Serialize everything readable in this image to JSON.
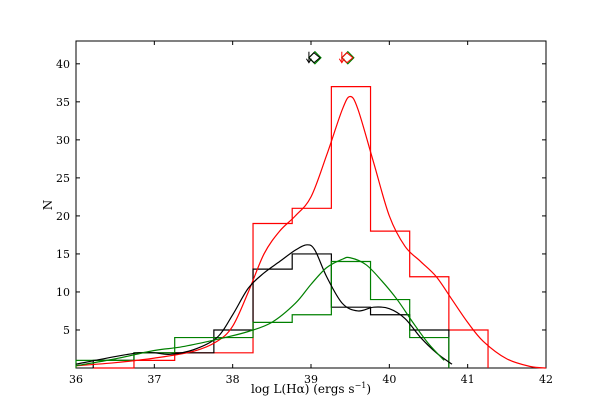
{
  "chart_data": {
    "type": "line",
    "title": "",
    "xlabel": "log L(Hα) (ergs s",
    "xlabel_sup": "−1",
    "xlabel_tail": ")",
    "ylabel": "N",
    "xlim": [
      36,
      42
    ],
    "ylim": [
      0,
      43
    ],
    "xticks": [
      36,
      37,
      38,
      39,
      40,
      41,
      42
    ],
    "yticks": [
      5,
      10,
      15,
      20,
      25,
      30,
      35,
      40
    ],
    "grid": false,
    "legend": "none",
    "histograms": [
      {
        "color": "#ff0000",
        "edges": [
          36.22,
          36.74,
          37.26,
          37.76,
          38.26,
          38.76,
          39.26,
          39.76,
          40.26,
          40.76,
          41.26
        ],
        "counts": [
          0,
          1,
          2,
          2,
          19,
          21,
          37,
          18,
          12,
          5
        ]
      },
      {
        "color": "#000000",
        "edges": [
          36.22,
          36.74,
          37.26,
          37.76,
          38.26,
          38.76,
          39.26,
          39.76,
          40.26,
          40.76
        ],
        "counts": [
          1,
          2,
          2,
          5,
          13,
          15,
          8,
          7,
          5
        ]
      },
      {
        "color": "#008000",
        "edges": [
          36.0,
          36.74,
          37.26,
          37.76,
          38.26,
          38.76,
          39.26,
          39.76,
          40.26,
          40.76
        ],
        "counts": [
          1,
          2,
          4,
          4,
          6,
          7,
          14,
          9,
          4
        ]
      }
    ],
    "curves": [
      {
        "color": "#ff0000",
        "x": [
          36.0,
          36.5,
          37.0,
          37.5,
          37.8,
          38.0,
          38.2,
          38.4,
          38.6,
          38.8,
          39.0,
          39.2,
          39.4,
          39.5,
          39.6,
          39.8,
          40.0,
          40.2,
          40.4,
          40.6,
          40.8,
          41.0,
          41.2,
          41.5,
          41.8,
          42.0
        ],
        "y": [
          0.3,
          0.7,
          1.3,
          2.2,
          3.5,
          5.5,
          10,
          15,
          18,
          20,
          22.5,
          28,
          34,
          35.7,
          34,
          27,
          20,
          16,
          14,
          12,
          9,
          6,
          3.5,
          1.2,
          0.2,
          0
        ]
      },
      {
        "color": "#000000",
        "x": [
          36.0,
          36.5,
          36.8,
          37.0,
          37.2,
          37.5,
          37.8,
          38.0,
          38.2,
          38.4,
          38.6,
          38.8,
          38.95,
          39.05,
          39.2,
          39.4,
          39.6,
          39.8,
          40.0,
          40.2,
          40.4,
          40.6,
          40.8
        ],
        "y": [
          0.5,
          1.5,
          2.0,
          2.0,
          1.8,
          2.4,
          4.0,
          7.0,
          10.5,
          12.5,
          14.0,
          15.5,
          16.2,
          15.5,
          12.0,
          8.5,
          7.5,
          8.0,
          7.8,
          6.5,
          4.0,
          2.0,
          0.5
        ]
      },
      {
        "color": "#008000",
        "x": [
          36.0,
          36.5,
          37.0,
          37.3,
          37.6,
          37.9,
          38.2,
          38.5,
          38.8,
          39.0,
          39.2,
          39.4,
          39.5,
          39.7,
          39.9,
          40.1,
          40.3,
          40.5,
          40.7
        ],
        "y": [
          0.3,
          1.2,
          2.3,
          2.7,
          3.3,
          4.0,
          4.8,
          6.0,
          8.5,
          11.0,
          13.2,
          14.3,
          14.5,
          13.6,
          11.5,
          9.0,
          6.0,
          3.2,
          1.0
        ]
      }
    ],
    "markers": [
      {
        "color": "#000000",
        "type": "diamond-with-arrow",
        "x": 39.05,
        "y": 40.8
      },
      {
        "color": "#ff0000",
        "type": "diamond-with-arrow",
        "x": 39.47,
        "y": 40.8
      }
    ]
  }
}
